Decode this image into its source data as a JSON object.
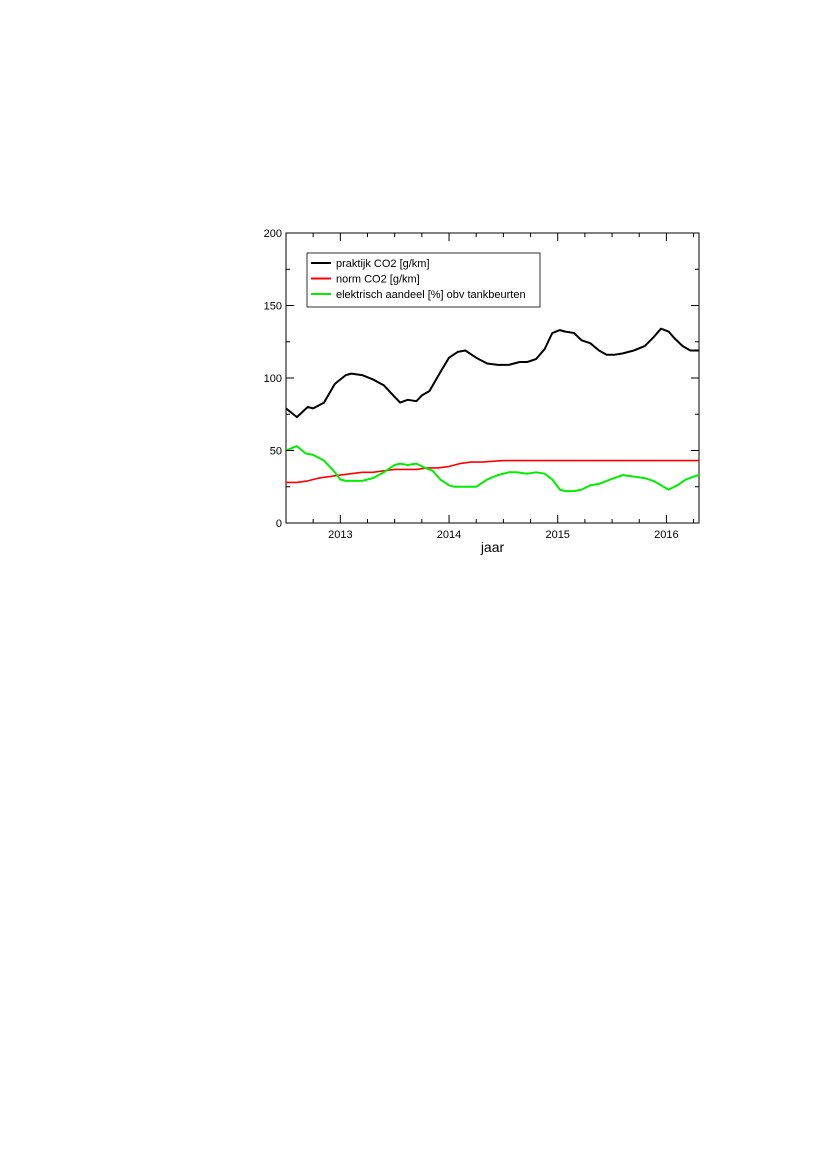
{
  "chart_data": {
    "type": "line",
    "title": "",
    "xlabel": "jaar",
    "ylabel": "",
    "xlim": [
      2012.5,
      2016.3
    ],
    "ylim": [
      0,
      200
    ],
    "xticks": [
      2013,
      2014,
      2015,
      2016
    ],
    "xtick_labels": [
      "2013",
      "2014",
      "2015",
      "2016"
    ],
    "yticks": [
      0,
      50,
      100,
      150,
      200
    ],
    "ytick_labels": [
      "0",
      "50",
      "100",
      "150",
      "200"
    ],
    "grid": false,
    "legend_position": "top-left",
    "series": [
      {
        "name": "praktijk CO2 [g/km]",
        "color": "#000000",
        "x": [
          2012.5,
          2012.6,
          2012.7,
          2012.75,
          2012.85,
          2012.95,
          2013.05,
          2013.1,
          2013.2,
          2013.3,
          2013.4,
          2013.5,
          2013.55,
          2013.62,
          2013.7,
          2013.75,
          2013.82,
          2013.92,
          2014.0,
          2014.08,
          2014.15,
          2014.25,
          2014.35,
          2014.45,
          2014.55,
          2014.65,
          2014.72,
          2014.8,
          2014.88,
          2014.95,
          2015.02,
          2015.07,
          2015.15,
          2015.22,
          2015.3,
          2015.38,
          2015.45,
          2015.52,
          2015.6,
          2015.7,
          2015.8,
          2015.88,
          2015.95,
          2016.02,
          2016.08,
          2016.15,
          2016.22,
          2016.3
        ],
        "values": [
          79,
          73,
          80,
          79,
          83,
          96,
          102,
          103,
          102,
          99,
          95,
          87,
          83,
          85,
          84,
          88,
          91,
          104,
          114,
          118,
          119,
          114,
          110,
          109,
          109,
          111,
          111,
          113,
          120,
          131,
          133,
          132,
          131,
          126,
          124,
          119,
          116,
          116,
          117,
          119,
          122,
          128,
          134,
          132,
          127,
          122,
          119,
          119
        ]
      },
      {
        "name": "norm CO2 [g/km]",
        "color": "#ff0000",
        "x": [
          2012.5,
          2012.6,
          2012.7,
          2012.8,
          2012.9,
          2013.0,
          2013.1,
          2013.2,
          2013.3,
          2013.4,
          2013.5,
          2013.6,
          2013.7,
          2013.8,
          2013.9,
          2014.0,
          2014.1,
          2014.2,
          2014.3,
          2014.5,
          2014.7,
          2014.9,
          2015.1,
          2015.3,
          2015.5,
          2015.7,
          2015.9,
          2016.1,
          2016.3
        ],
        "values": [
          28,
          28,
          29,
          31,
          32,
          33,
          34,
          35,
          35,
          36,
          37,
          37,
          37,
          38,
          38,
          39,
          41,
          42,
          42,
          43,
          43,
          43,
          43,
          43,
          43,
          43,
          43,
          43,
          43
        ]
      },
      {
        "name": "elektrisch aandeel [%] obv tankbeurten",
        "color": "#00ee00",
        "x": [
          2012.5,
          2012.6,
          2012.68,
          2012.75,
          2012.85,
          2012.95,
          2013.0,
          2013.05,
          2013.1,
          2013.2,
          2013.3,
          2013.4,
          2013.5,
          2013.55,
          2013.62,
          2013.7,
          2013.78,
          2013.85,
          2013.92,
          2014.0,
          2014.05,
          2014.15,
          2014.25,
          2014.35,
          2014.45,
          2014.55,
          2014.62,
          2014.72,
          2014.8,
          2014.88,
          2014.95,
          2015.02,
          2015.07,
          2015.15,
          2015.22,
          2015.3,
          2015.38,
          2015.45,
          2015.52,
          2015.6,
          2015.7,
          2015.8,
          2015.88,
          2015.95,
          2016.02,
          2016.1,
          2016.18,
          2016.25,
          2016.3
        ],
        "values": [
          50,
          53,
          48,
          47,
          43,
          35,
          30,
          29,
          29,
          29,
          31,
          35,
          40,
          41,
          40,
          41,
          38,
          36,
          30,
          26,
          25,
          25,
          25,
          30,
          33,
          35,
          35,
          34,
          35,
          34,
          30,
          23,
          22,
          22,
          23,
          26,
          27,
          29,
          31,
          33,
          32,
          31,
          29,
          26,
          23,
          26,
          30,
          32,
          33
        ]
      }
    ]
  }
}
